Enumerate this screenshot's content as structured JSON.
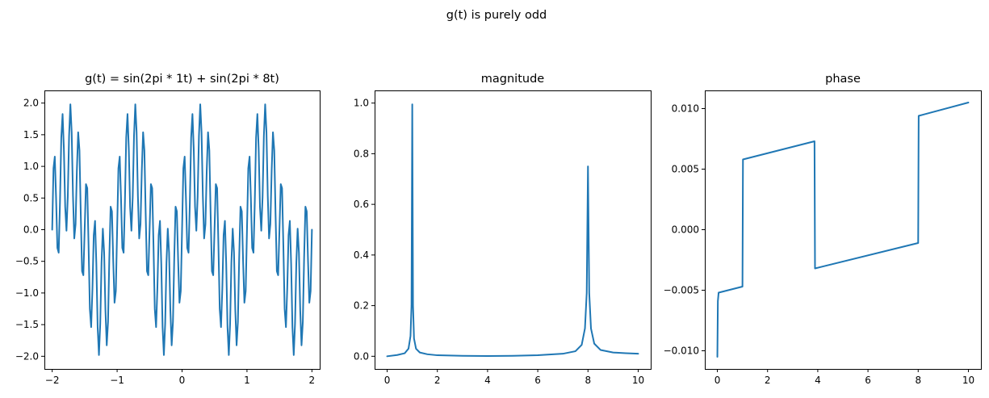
{
  "suptitle": "g(t) is purely odd",
  "colors": {
    "line": "#1f77b4"
  },
  "chart_data": [
    {
      "type": "line",
      "title": "g(t) = sin(2pi * 1t) + sin(2pi * 8t)",
      "xlabel": "",
      "ylabel": "",
      "xlim": [
        -2.12,
        2.12
      ],
      "ylim": [
        -2.2,
        2.2
      ],
      "xticks": [
        -2,
        -1,
        0,
        1,
        2
      ],
      "xtick_labels": [
        "−2",
        "−1",
        "0",
        "1",
        "2"
      ],
      "yticks": [
        -2.0,
        -1.5,
        -1.0,
        -0.5,
        0.0,
        0.5,
        1.0,
        1.5,
        2.0
      ],
      "ytick_labels": [
        "−2.0",
        "−1.5",
        "−1.0",
        "−0.5",
        "0.0",
        "0.5",
        "1.0",
        "1.5",
        "2.0"
      ],
      "grid": false,
      "series": [
        {
          "function": "sin(2*pi*1*t) + sin(2*pi*8*t)",
          "t_range": [
            -2,
            2
          ],
          "samples": 201
        }
      ]
    },
    {
      "type": "line",
      "title": "magnitude",
      "xlabel": "",
      "ylabel": "",
      "xlim": [
        -0.5,
        10.5
      ],
      "ylim": [
        -0.05,
        1.05
      ],
      "xticks": [
        0,
        2,
        4,
        6,
        8,
        10
      ],
      "xtick_labels": [
        "0",
        "2",
        "4",
        "6",
        "8",
        "10"
      ],
      "yticks": [
        0.0,
        0.2,
        0.4,
        0.6,
        0.8,
        1.0
      ],
      "ytick_labels": [
        "0.0",
        "0.2",
        "0.4",
        "0.6",
        "0.8",
        "1.0"
      ],
      "grid": false,
      "series": [
        {
          "x": [
            0,
            0.4,
            0.7,
            0.85,
            0.93,
            0.97,
            1.0,
            1.03,
            1.07,
            1.15,
            1.3,
            1.6,
            2.0,
            3.0,
            4.0,
            5.0,
            6.0,
            7.0,
            7.5,
            7.75,
            7.88,
            7.95,
            8.0,
            8.05,
            8.12,
            8.25,
            8.5,
            9.0,
            9.5,
            10.0
          ],
          "y": [
            0.0,
            0.005,
            0.012,
            0.03,
            0.08,
            0.2,
            0.995,
            0.2,
            0.07,
            0.03,
            0.015,
            0.008,
            0.004,
            0.002,
            0.001,
            0.002,
            0.004,
            0.01,
            0.02,
            0.045,
            0.11,
            0.25,
            0.75,
            0.25,
            0.11,
            0.05,
            0.025,
            0.015,
            0.012,
            0.01
          ]
        }
      ]
    },
    {
      "type": "line",
      "title": "phase",
      "xlabel": "",
      "ylabel": "",
      "xlim": [
        -0.5,
        10.5
      ],
      "ylim": [
        -0.0115,
        0.0115
      ],
      "xticks": [
        0,
        2,
        4,
        6,
        8,
        10
      ],
      "xtick_labels": [
        "0",
        "2",
        "4",
        "6",
        "8",
        "10"
      ],
      "yticks": [
        -0.01,
        -0.005,
        0.0,
        0.005,
        0.01
      ],
      "ytick_labels": [
        "−0.010",
        "−0.005",
        "0.000",
        "0.005",
        "0.010"
      ],
      "grid": false,
      "series": [
        {
          "x": [
            0.0,
            0.02,
            0.05,
            1.0,
            1.02,
            3.87,
            3.89,
            8.0,
            8.02,
            10.0
          ],
          "y": [
            -0.0105,
            -0.0059,
            -0.0052,
            -0.0047,
            0.0058,
            0.0073,
            -0.0032,
            -0.0011,
            0.0094,
            0.0105
          ]
        }
      ]
    }
  ]
}
